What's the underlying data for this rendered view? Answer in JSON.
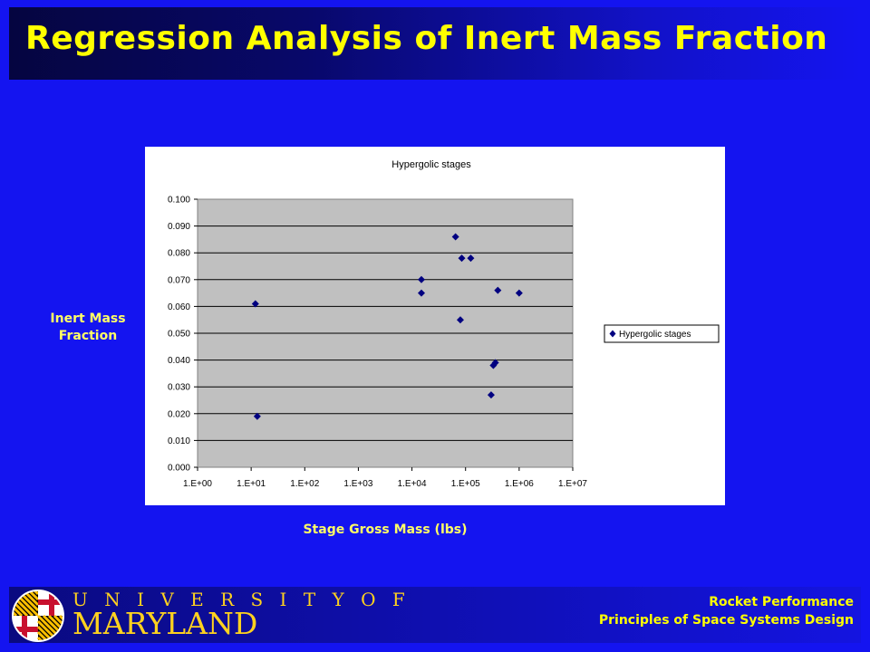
{
  "slide": {
    "title": "Regression Analysis of Inert Mass Fraction",
    "y_axis_label": "Inert Mass\nFraction",
    "x_axis_label": "Stage Gross Mass (lbs)"
  },
  "footer": {
    "university_line1": "U N I V E R S I T Y  O F",
    "university_line2": "MARYLAND",
    "right_line1": "Rocket Performance",
    "right_line2": "Principles of Space Systems Design"
  },
  "colors": {
    "background": "#1414f0",
    "title": "#ffff00",
    "axis_labels": "#ffff66",
    "plot_area": "#c0c0c0",
    "marker": "#000080",
    "university_text": "#ffd21f"
  },
  "chart_data": {
    "type": "scatter",
    "title": "Hypergolic stages",
    "x_scale": "log",
    "xlim": [
      1,
      10000000
    ],
    "ylim": [
      0.0,
      0.1
    ],
    "x_ticks": [
      "1.E+00",
      "1.E+01",
      "1.E+02",
      "1.E+03",
      "1.E+04",
      "1.E+05",
      "1.E+06",
      "1.E+07"
    ],
    "y_ticks": [
      "0.000",
      "0.010",
      "0.020",
      "0.030",
      "0.040",
      "0.050",
      "0.060",
      "0.070",
      "0.080",
      "0.090",
      "0.100"
    ],
    "grid": "horizontal",
    "legend_position": "right",
    "series": [
      {
        "name": "Hypergolic stages",
        "marker": "diamond",
        "points": [
          {
            "x": 12,
            "y": 0.061
          },
          {
            "x": 13,
            "y": 0.019
          },
          {
            "x": 15000,
            "y": 0.07
          },
          {
            "x": 15000,
            "y": 0.065
          },
          {
            "x": 65000,
            "y": 0.086
          },
          {
            "x": 85000,
            "y": 0.078
          },
          {
            "x": 125000,
            "y": 0.078
          },
          {
            "x": 80000,
            "y": 0.055
          },
          {
            "x": 400000,
            "y": 0.066
          },
          {
            "x": 1000000,
            "y": 0.065
          },
          {
            "x": 330000,
            "y": 0.038
          },
          {
            "x": 360000,
            "y": 0.039
          },
          {
            "x": 300000,
            "y": 0.027
          }
        ]
      }
    ]
  }
}
